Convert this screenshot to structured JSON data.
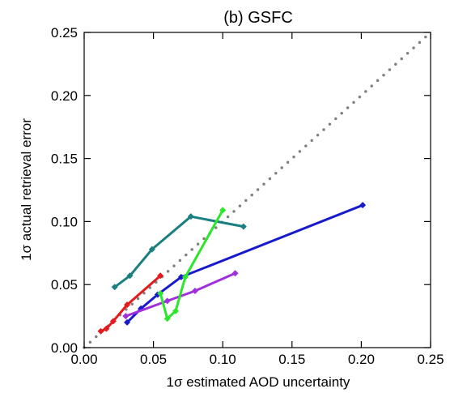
{
  "chart_data": {
    "type": "line",
    "title": "(b) GSFC",
    "xlabel": "1σ estimated AOD uncertainty",
    "ylabel": "1σ actual retrieval error",
    "xlim": [
      0,
      0.25
    ],
    "ylim": [
      0,
      0.25
    ],
    "xticks": [
      "0.00",
      "0.05",
      "0.10",
      "0.15",
      "0.20",
      "0.25"
    ],
    "yticks": [
      "0.00",
      "0.05",
      "0.10",
      "0.15",
      "0.20",
      "0.25"
    ],
    "grid": false,
    "legend": "none",
    "reference_line": {
      "style": "dotted",
      "color": "#808080",
      "x": [
        0,
        0.25
      ],
      "y": [
        0,
        0.25
      ]
    },
    "series": [
      {
        "color": "#e41a1c",
        "x": [
          0.012,
          0.016,
          0.021,
          0.031,
          0.055
        ],
        "y": [
          0.013,
          0.015,
          0.021,
          0.034,
          0.057
        ]
      },
      {
        "color": "#1a1acd",
        "x": [
          0.031,
          0.041,
          0.053,
          0.07,
          0.201
        ],
        "y": [
          0.02,
          0.031,
          0.042,
          0.056,
          0.113
        ]
      },
      {
        "color": "#a030dc",
        "x": [
          0.03,
          0.06,
          0.08,
          0.109
        ],
        "y": [
          0.025,
          0.037,
          0.045,
          0.059
        ]
      },
      {
        "color": "#1a7f7f",
        "x": [
          0.022,
          0.033,
          0.049,
          0.077,
          0.115
        ],
        "y": [
          0.048,
          0.057,
          0.078,
          0.104,
          0.096
        ]
      },
      {
        "color": "#2be62b",
        "x": [
          0.055,
          0.06,
          0.066,
          0.073,
          0.1
        ],
        "y": [
          0.043,
          0.023,
          0.029,
          0.056,
          0.109
        ]
      }
    ]
  }
}
